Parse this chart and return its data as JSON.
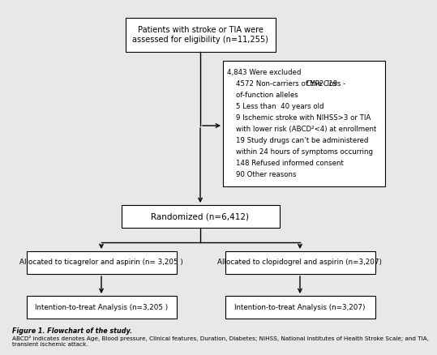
{
  "fig_bg": "#e8e8e8",
  "box_bg": "#ffffff",
  "box_edge": "#000000",
  "title_text": "Figure 1. Flowchart of the study.",
  "caption_text": "ABCD² indicates denotes Age, Blood pressure, Clinical features, Duration, Diabetes; NIHSS, National Institutes of Health Stroke Scale; and TIA,\ntransient ischemic attack.",
  "top_box": "Patients with stroke or TIA were\nassessed for eligibility (n=11,255)",
  "random_box": "Randomized (n=6,412)",
  "left_alloc_box": "Allocated to ticagrelor and aspirin (n= 3,205 )",
  "right_alloc_box": "Allocated to clopidogrel and aspirin (n=3,207)",
  "left_itt_box": "Intention-to-treat Analysis (n=3,205 )",
  "right_itt_box": "Intention-to-treat Analysis (n=3,207)",
  "excl_line0": "4,843 Were excluded",
  "excl_line1a": "    4572 Non-carriers of the ",
  "excl_line1b": "CYP2C19",
  "excl_line1c": " loss -",
  "excl_line2": "    of-function alleles",
  "excl_line3": "    5 Less than  40 years old",
  "excl_line4": "    9 Ischemic stroke with NIHSS>3 or TIA",
  "excl_line5": "    with lower risk (ABCD²<4) at enrollment",
  "excl_line6": "    19 Study drugs can’t be administered",
  "excl_line7": "    within 24 hours of symptoms occurring",
  "excl_line8": "    148 Refused informed consent",
  "excl_line9": "    90 Other reasons"
}
